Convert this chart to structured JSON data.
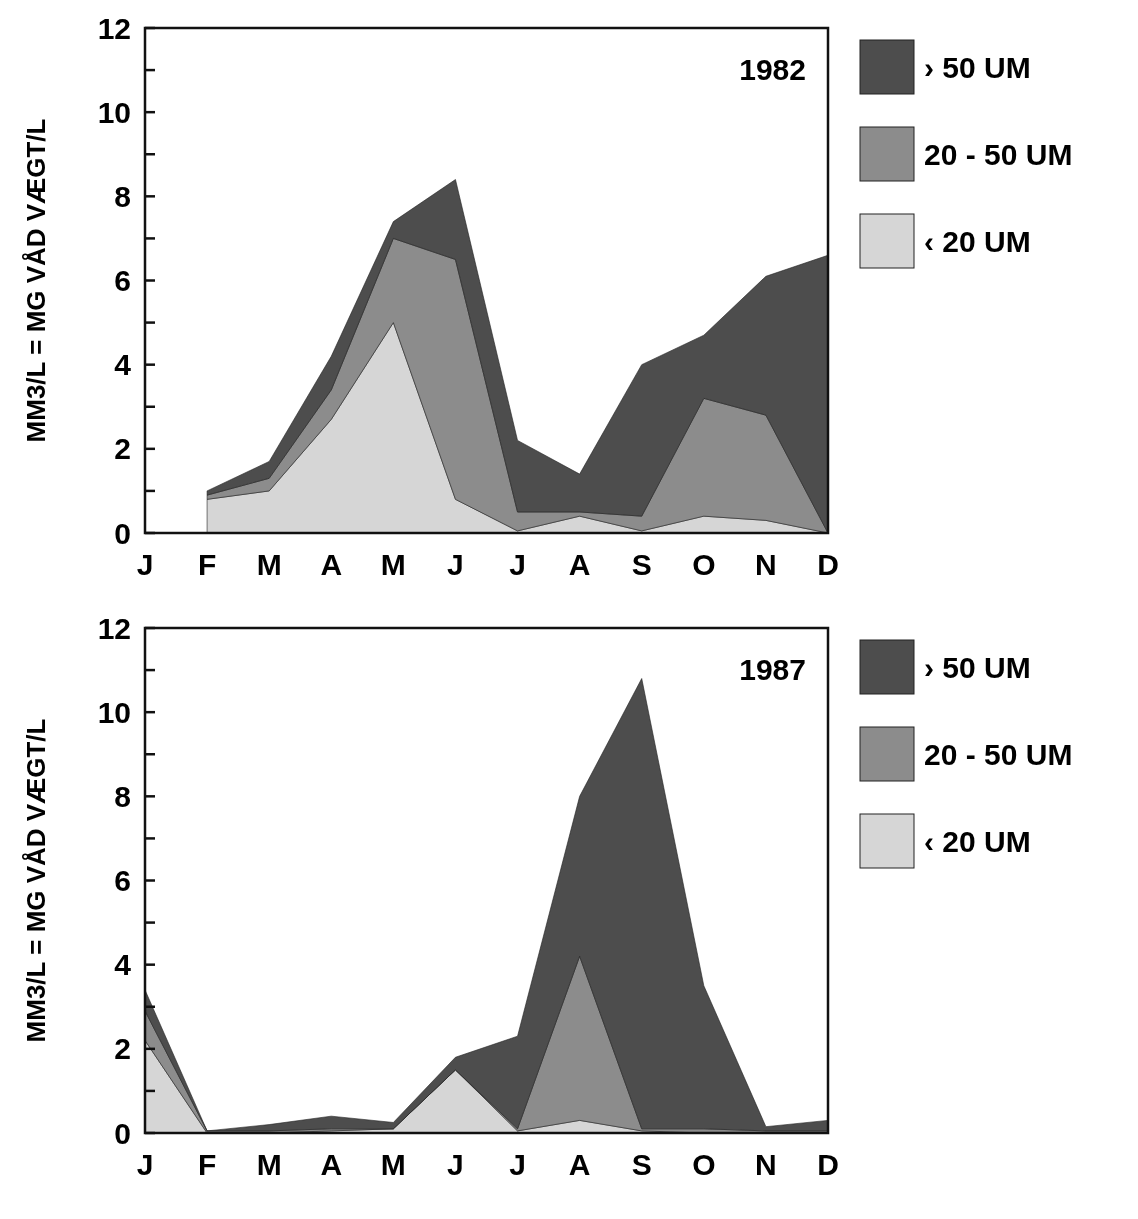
{
  "chart_data": [
    {
      "type": "area",
      "stacked": true,
      "title": "1982",
      "ylabel": "MM3/L = MG VÅD VÆGT/L",
      "categories": [
        "J",
        "F",
        "M",
        "A",
        "M",
        "J",
        "J",
        "A",
        "S",
        "O",
        "N",
        "D"
      ],
      "ylim": [
        0,
        12
      ],
      "yticks": [
        0,
        {
          "value": 1,
          "label": null
        },
        2,
        {
          "value": 3,
          "label": null
        },
        4,
        {
          "value": 5,
          "label": null
        },
        6,
        {
          "value": 7,
          "label": null
        },
        8,
        {
          "value": 9,
          "label": null
        },
        10,
        {
          "value": 11,
          "label": null
        },
        12
      ],
      "legend": "right",
      "grid": false,
      "series": [
        {
          "name": "‹ 20 UM",
          "color": "#d6d6d6",
          "values": [
            null,
            0.8,
            1.0,
            2.7,
            5.0,
            0.8,
            0.05,
            0.4,
            0.05,
            0.4,
            0.3,
            0.0
          ]
        },
        {
          "name": "20 - 50 UM",
          "color": "#8c8c8c",
          "values": [
            null,
            0.1,
            0.3,
            0.7,
            2.0,
            5.7,
            0.45,
            0.1,
            0.35,
            2.8,
            2.5,
            0.0
          ]
        },
        {
          "name": "› 50 UM",
          "color": "#4d4d4d",
          "values": [
            null,
            0.1,
            0.4,
            0.8,
            0.4,
            1.9,
            1.7,
            0.9,
            3.6,
            1.5,
            3.3,
            6.6
          ]
        }
      ]
    },
    {
      "type": "area",
      "stacked": true,
      "title": "1987",
      "ylabel": "MM3/L = MG VÅD VÆGT/L",
      "categories": [
        "J",
        "F",
        "M",
        "A",
        "M",
        "J",
        "J",
        "A",
        "S",
        "O",
        "N",
        "D"
      ],
      "ylim": [
        0,
        12
      ],
      "yticks": [
        0,
        {
          "value": 1,
          "label": null
        },
        2,
        {
          "value": 3,
          "label": null
        },
        4,
        {
          "value": 5,
          "label": null
        },
        6,
        {
          "value": 7,
          "label": null
        },
        8,
        {
          "value": 9,
          "label": null
        },
        10,
        {
          "value": 11,
          "label": null
        },
        12
      ],
      "legend": "right",
      "grid": false,
      "series": [
        {
          "name": "‹ 20 UM",
          "color": "#d6d6d6",
          "values": [
            2.2,
            0,
            0,
            0.05,
            0.1,
            1.5,
            0.05,
            0.3,
            0.05,
            0,
            0,
            0
          ]
        },
        {
          "name": "20 - 50 UM",
          "color": "#8c8c8c",
          "values": [
            0.7,
            0.05,
            0.05,
            0.05,
            0,
            0,
            0.05,
            3.9,
            0.05,
            0.1,
            0.05,
            0.05
          ]
        },
        {
          "name": "› 50 UM",
          "color": "#4d4d4d",
          "values": [
            0.5,
            0,
            0.15,
            0.3,
            0.15,
            0.3,
            2.2,
            3.8,
            10.7,
            3.4,
            0.1,
            0.25
          ]
        }
      ]
    }
  ]
}
